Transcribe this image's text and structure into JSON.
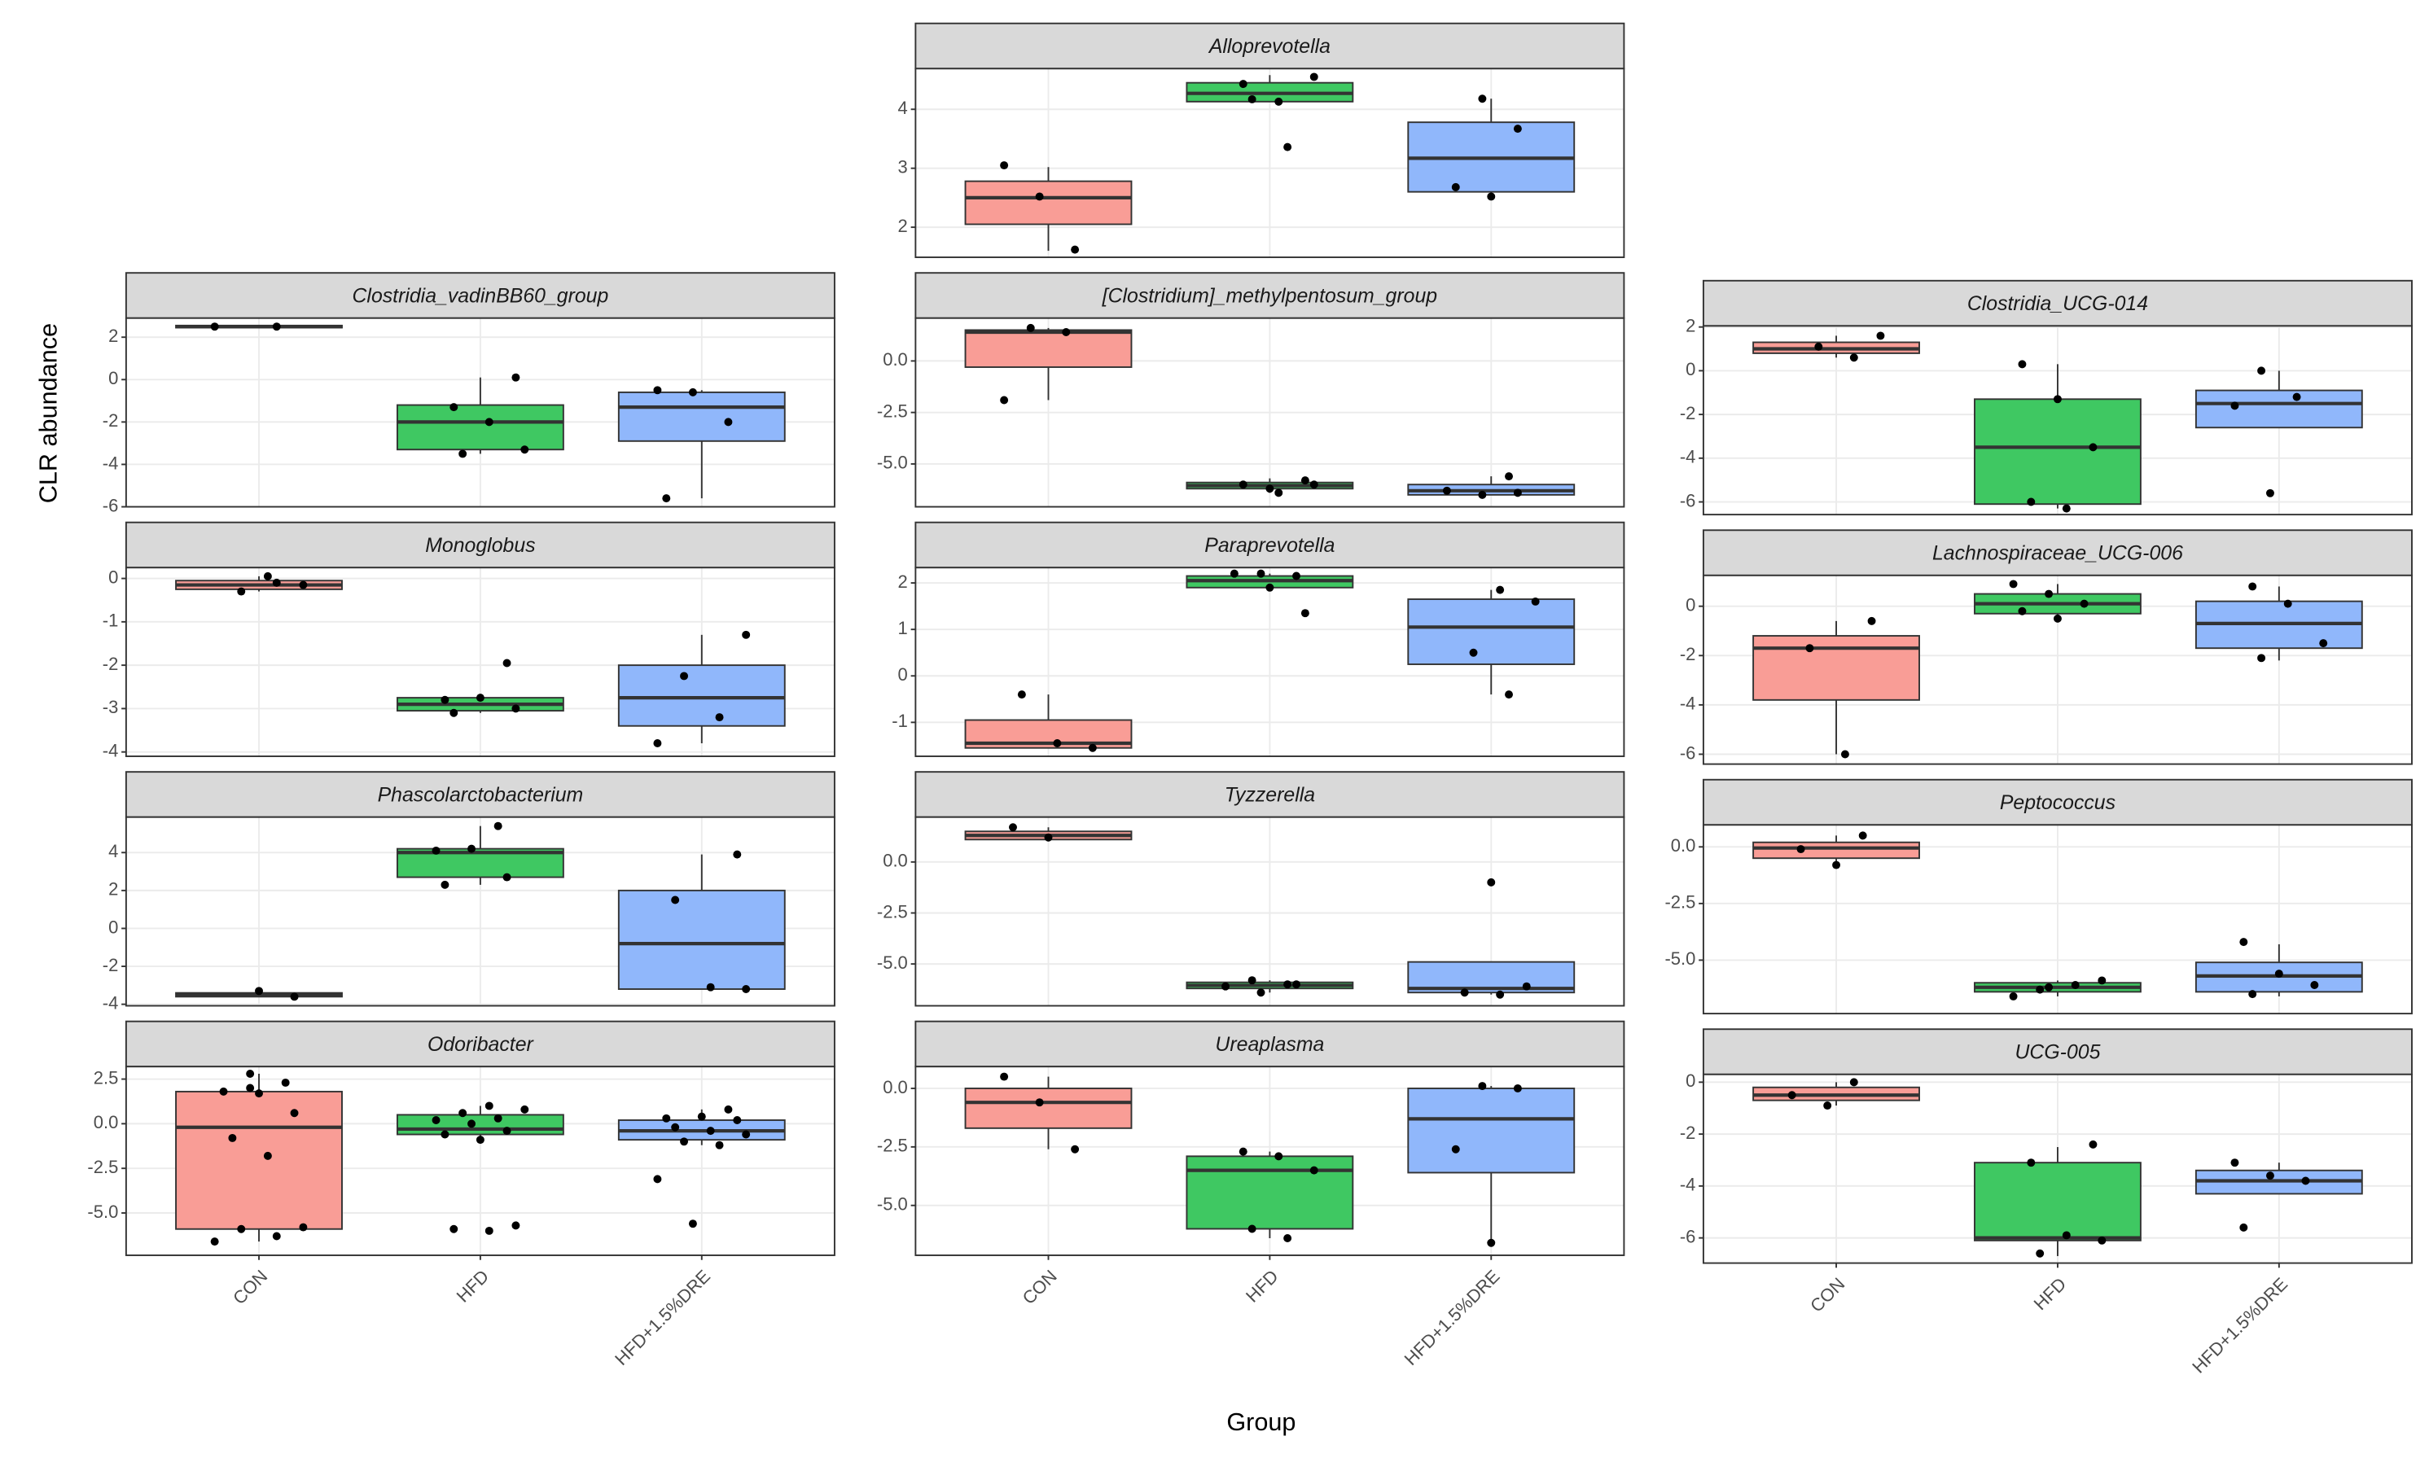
{
  "chart_data": {
    "type": "box",
    "x_label": "Group",
    "y_label": "CLR abundance",
    "categories": [
      "CON",
      "HFD",
      "HFD+1.5%DRE"
    ],
    "colors": [
      "#f99d96",
      "#3fc862",
      "#90b7fb"
    ],
    "grid": true,
    "panels": [
      {
        "title": "Alloprevotella",
        "ylim": [
          1.49,
          4.69
        ],
        "yticks": [
          2,
          3,
          4
        ],
        "boxes": [
          {
            "min": 1.6,
            "q1": 2.05,
            "median": 2.5,
            "q3": 2.78,
            "max": 3.02,
            "points": [
              3.05,
              2.52,
              1.62
            ]
          },
          {
            "min": 4.13,
            "q1": 4.13,
            "median": 4.27,
            "q3": 4.45,
            "max": 4.58,
            "points": [
              4.43,
              4.13,
              4.55,
              4.17,
              3.36
            ]
          },
          {
            "min": 2.5,
            "q1": 2.6,
            "median": 3.17,
            "q3": 3.78,
            "max": 4.18,
            "points": [
              4.18,
              3.67,
              2.68,
              2.52
            ]
          }
        ]
      },
      {
        "title": "Clostridia_vadinBB60_group",
        "ylim": [
          -6,
          2.9
        ],
        "yticks": [
          2,
          0,
          -2,
          -4,
          -6
        ],
        "boxes": [
          {
            "min": 2.45,
            "q1": 2.45,
            "median": 2.5,
            "q3": 2.55,
            "max": 2.55,
            "points": [
              2.5,
              2.5
            ]
          },
          {
            "min": -3.5,
            "q1": -3.3,
            "median": -2,
            "q3": -1.2,
            "max": 0.1,
            "points": [
              0.1,
              -1.3,
              -2,
              -3.3,
              -3.5
            ]
          },
          {
            "min": -5.6,
            "q1": -2.9,
            "median": -1.3,
            "q3": -0.6,
            "max": -0.5,
            "points": [
              -0.5,
              -0.6,
              -2,
              -5.6
            ]
          }
        ]
      },
      {
        "title": "[Clostridium]_methylpentosum_group",
        "ylim": [
          -7.08,
          2.08
        ],
        "yticks": [
          {
            "value": 0,
            "label": "0.0"
          },
          -2.5,
          {
            "value": -5,
            "label": "-5.0"
          }
        ],
        "boxes": [
          {
            "min": -1.9,
            "q1": -0.3,
            "median": 1.4,
            "q3": 1.5,
            "max": 1.6,
            "points": [
              1.6,
              1.4,
              -1.9
            ]
          },
          {
            "min": -6.4,
            "q1": -6.2,
            "median": -6.05,
            "q3": -5.9,
            "max": -5.7,
            "points": [
              -6.2,
              -5.8,
              -6.0,
              -6.4,
              -6.0
            ]
          },
          {
            "min": -6.5,
            "q1": -6.5,
            "median": -6.3,
            "q3": -6.0,
            "max": -5.6,
            "points": [
              -5.6,
              -6.3,
              -6.5,
              -6.4
            ]
          }
        ]
      },
      {
        "title": "Clostridia_UCG-014",
        "ylim": [
          -6.58,
          2.05
        ],
        "yticks": [
          2,
          0,
          -2,
          -4,
          -6
        ],
        "boxes": [
          {
            "min": 0.6,
            "q1": 0.8,
            "median": 1.0,
            "q3": 1.3,
            "max": 1.6,
            "points": [
              1.6,
              1.1,
              0.6
            ]
          },
          {
            "min": -6.3,
            "q1": -6.1,
            "median": -3.5,
            "q3": -1.3,
            "max": 0.3,
            "points": [
              0.3,
              -1.3,
              -3.5,
              -6.0,
              -6.3
            ]
          },
          {
            "min": -2.6,
            "q1": -2.6,
            "median": -1.5,
            "q3": -0.9,
            "max": 0,
            "points": [
              0,
              -1.2,
              -1.6,
              -5.6
            ]
          }
        ]
      },
      {
        "title": "Monoglobus",
        "ylim": [
          -4.1,
          0.25
        ],
        "yticks": [
          0,
          -1,
          -2,
          -3,
          -4
        ],
        "boxes": [
          {
            "min": -0.3,
            "q1": -0.25,
            "median": -0.15,
            "q3": -0.05,
            "max": 0.05,
            "points": [
              0.05,
              -0.15,
              -0.3,
              -0.1
            ]
          },
          {
            "min": -3.1,
            "q1": -3.05,
            "median": -2.9,
            "q3": -2.75,
            "max": -2.7,
            "points": [
              -1.95,
              -2.8,
              -2.75,
              -3.0,
              -3.1
            ]
          },
          {
            "min": -3.8,
            "q1": -3.4,
            "median": -2.75,
            "q3": -2.0,
            "max": -1.3,
            "points": [
              -1.3,
              -2.25,
              -3.2,
              -3.8
            ]
          }
        ]
      },
      {
        "title": "Paraprevotella",
        "ylim": [
          -1.73,
          2.33
        ],
        "yticks": [
          2,
          1,
          0,
          -1
        ],
        "boxes": [
          {
            "min": -1.55,
            "q1": -1.55,
            "median": -1.45,
            "q3": -0.95,
            "max": -0.4,
            "points": [
              -0.4,
              -1.45,
              -1.55
            ]
          },
          {
            "min": 1.9,
            "q1": 1.9,
            "median": 2.05,
            "q3": 2.15,
            "max": 2.2,
            "points": [
              2.2,
              2.15,
              2.2,
              1.9,
              1.35
            ]
          },
          {
            "min": -0.4,
            "q1": 0.25,
            "median": 1.05,
            "q3": 1.65,
            "max": 1.85,
            "points": [
              1.85,
              1.6,
              0.5,
              -0.4
            ]
          }
        ]
      },
      {
        "title": "Lachnospiraceae_UCG-006",
        "ylim": [
          -6.4,
          1.25
        ],
        "yticks": [
          0,
          -2,
          -4,
          -6
        ],
        "boxes": [
          {
            "min": -6,
            "q1": -3.8,
            "median": -1.7,
            "q3": -1.2,
            "max": -0.6,
            "points": [
              -0.6,
              -1.7,
              -6.0
            ]
          },
          {
            "min": -0.5,
            "q1": -0.3,
            "median": 0.1,
            "q3": 0.5,
            "max": 0.9,
            "points": [
              0.9,
              0.5,
              0.1,
              -0.2,
              -0.5
            ]
          },
          {
            "min": -2.2,
            "q1": -1.7,
            "median": -0.7,
            "q3": 0.2,
            "max": 0.8,
            "points": [
              0.8,
              0.1,
              -1.5,
              -2.1
            ]
          }
        ]
      },
      {
        "title": "Phascolarctobacterium",
        "ylim": [
          -4.08,
          5.87
        ],
        "yticks": [
          4,
          2,
          0,
          -2,
          -4
        ],
        "boxes": [
          {
            "min": -3.6,
            "q1": -3.6,
            "median": -3.5,
            "q3": -3.4,
            "max": -3.3,
            "points": [
              -3.3,
              -3.6
            ]
          },
          {
            "min": 2.3,
            "q1": 2.7,
            "median": 4.0,
            "q3": 4.2,
            "max": 5.4,
            "points": [
              5.4,
              4.1,
              4.2,
              2.7,
              2.3
            ]
          },
          {
            "min": -3.2,
            "q1": -3.2,
            "median": -0.8,
            "q3": 2.0,
            "max": 3.9,
            "points": [
              3.9,
              1.5,
              -3.1,
              -3.2
            ]
          }
        ]
      },
      {
        "title": "Tyzzerella",
        "ylim": [
          -7.05,
          2.2
        ],
        "yticks": [
          {
            "value": 0,
            "label": "0.0"
          },
          -2.5,
          {
            "value": -5,
            "label": "-5.0"
          }
        ],
        "boxes": [
          {
            "min": 1.1,
            "q1": 1.1,
            "median": 1.3,
            "q3": 1.5,
            "max": 1.7,
            "points": [
              1.7,
              1.2
            ]
          },
          {
            "min": -6.4,
            "q1": -6.2,
            "median": -6.05,
            "q3": -5.9,
            "max": -5.8,
            "points": [
              -5.8,
              -6.0,
              -6.1,
              -6.4,
              -6.0
            ]
          },
          {
            "min": -6.5,
            "q1": -6.4,
            "median": -6.2,
            "q3": -4.9,
            "max": -4.9,
            "points": [
              -1.0,
              -6.1,
              -6.4,
              -6.5
            ]
          }
        ]
      },
      {
        "title": "Peptococcus",
        "ylim": [
          -7.36,
          0.97
        ],
        "yticks": [
          {
            "value": 0,
            "label": "0.0"
          },
          -2.5,
          {
            "value": -5,
            "label": "-5.0"
          }
        ],
        "boxes": [
          {
            "min": -0.8,
            "q1": -0.5,
            "median": -0.05,
            "q3": 0.2,
            "max": 0.5,
            "points": [
              0.5,
              -0.1,
              -0.8
            ]
          },
          {
            "min": -6.6,
            "q1": -6.4,
            "median": -6.2,
            "q3": -6.0,
            "max": -5.9,
            "points": [
              -5.9,
              -6.3,
              -6.1,
              -6.6,
              -6.2
            ]
          },
          {
            "min": -6.6,
            "q1": -6.4,
            "median": -5.7,
            "q3": -5.1,
            "max": -4.3,
            "points": [
              -4.2,
              -5.6,
              -6.1,
              -6.5
            ]
          }
        ]
      },
      {
        "title": "Odoribacter",
        "ylim": [
          -7.37,
          3.2
        ],
        "yticks": [
          2.5,
          {
            "value": 0,
            "label": "0.0"
          },
          -2.5,
          {
            "value": -5,
            "label": "-5.0"
          }
        ],
        "boxes": [
          {
            "min": -6.6,
            "q1": -5.9,
            "median": -0.2,
            "q3": 1.8,
            "max": 2.8,
            "points": [
              2.8,
              2.3,
              1.8,
              1.7,
              0.6,
              -0.8,
              -1.8,
              -5.8,
              -5.9,
              -6.3,
              -6.6,
              2.0
            ]
          },
          {
            "min": -1.0,
            "q1": -0.6,
            "median": -0.3,
            "q3": 0.5,
            "max": 1.0,
            "points": [
              1.0,
              0.8,
              0.6,
              0.3,
              0.2,
              0,
              -0.4,
              -0.6,
              -0.9,
              -5.7,
              -5.9,
              -6.0
            ]
          },
          {
            "min": -1.2,
            "q1": -0.9,
            "median": -0.4,
            "q3": 0.2,
            "max": 0.8,
            "points": [
              0.8,
              0.3,
              0.4,
              0.2,
              -0.2,
              -0.4,
              -0.6,
              -1.0,
              -1.2,
              -3.1,
              -5.6
            ]
          }
        ]
      },
      {
        "title": "Ureaplasma",
        "ylim": [
          -7.13,
          0.93
        ],
        "yticks": [
          {
            "value": 0,
            "label": "0.0"
          },
          -2.5,
          {
            "value": -5,
            "label": "-5.0"
          }
        ],
        "boxes": [
          {
            "min": -2.6,
            "q1": -1.7,
            "median": -0.6,
            "q3": 0,
            "max": 0.5,
            "points": [
              0.5,
              -0.6,
              -2.6
            ]
          },
          {
            "min": -6.4,
            "q1": -6.0,
            "median": -3.5,
            "q3": -2.9,
            "max": -2.7,
            "points": [
              -2.7,
              -2.9,
              -3.5,
              -6.0,
              -6.4
            ]
          },
          {
            "min": -6.6,
            "q1": -3.6,
            "median": -1.3,
            "q3": 0,
            "max": 0.1,
            "points": [
              0.1,
              0,
              -2.6,
              -6.6
            ]
          }
        ]
      },
      {
        "title": "UCG-005",
        "ylim": [
          -6.97,
          0.3
        ],
        "yticks": [
          0,
          -2,
          -4,
          -6
        ],
        "boxes": [
          {
            "min": -0.9,
            "q1": -0.7,
            "median": -0.5,
            "q3": -0.2,
            "max": 0,
            "points": [
              0,
              -0.5,
              -0.9
            ]
          },
          {
            "min": -6.7,
            "q1": -6.1,
            "median": -6.0,
            "q3": -3.1,
            "max": -2.5,
            "points": [
              -2.4,
              -3.1,
              -5.9,
              -6.1,
              -6.6
            ]
          },
          {
            "min": -4.3,
            "q1": -4.3,
            "median": -3.8,
            "q3": -3.4,
            "max": -3.1,
            "points": [
              -3.1,
              -3.6,
              -3.8,
              -5.6
            ]
          }
        ]
      }
    ]
  }
}
